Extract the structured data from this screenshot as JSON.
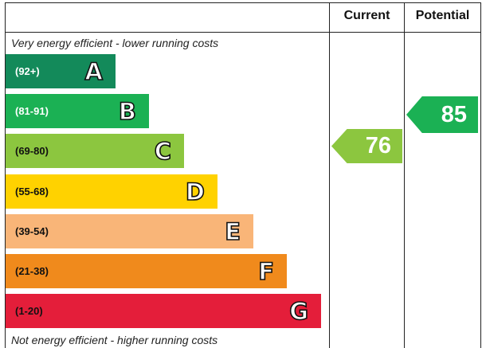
{
  "columns": {
    "current": "Current",
    "potential": "Potential"
  },
  "captions": {
    "top": "Very energy efficient - lower running costs",
    "bottom": "Not energy efficient - higher running costs"
  },
  "bands": [
    {
      "range": "(92+)",
      "letter": "A",
      "color": "#138a5a"
    },
    {
      "range": "(81-91)",
      "letter": "B",
      "color": "#1bb154"
    },
    {
      "range": "(69-80)",
      "letter": "C",
      "color": "#8cc63f"
    },
    {
      "range": "(55-68)",
      "letter": "D",
      "color": "#ffd200"
    },
    {
      "range": "(39-54)",
      "letter": "E",
      "color": "#f9b578"
    },
    {
      "range": "(21-38)",
      "letter": "F",
      "color": "#f08a1c"
    },
    {
      "range": "(1-20)",
      "letter": "G",
      "color": "#e41e3a"
    }
  ],
  "ratings": {
    "current": {
      "value": "76",
      "band": "C",
      "color": "#8cc63f"
    },
    "potential": {
      "value": "85",
      "band": "B",
      "color": "#1bb154"
    }
  }
}
